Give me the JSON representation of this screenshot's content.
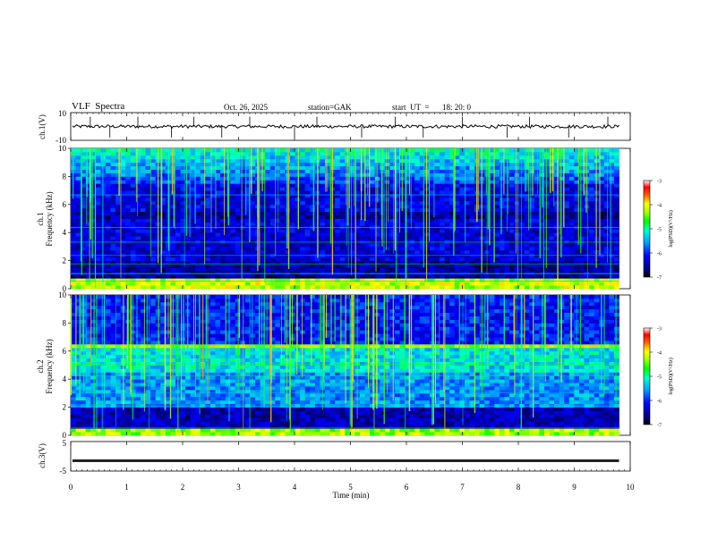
{
  "header": {
    "title": "VLF  Spectra",
    "date": "Oct. 26, 2025",
    "station": "station=GAK",
    "start_label": "start  UT  =",
    "start_time": "18: 20: 0"
  },
  "chart_data": [
    {
      "type": "line",
      "id": "ch1-waveform",
      "ylabel": "ch.1(V)",
      "ylim": [
        -10,
        10
      ],
      "ytick_labels": [
        "10",
        "-10"
      ],
      "baseline": 0,
      "spike_times_min": [
        0.35,
        0.7,
        1.2,
        1.8,
        2.2,
        2.7,
        3.2,
        4.0,
        4.4,
        5.2,
        5.8,
        6.3,
        7.0,
        7.8,
        8.2,
        8.9,
        9.6
      ]
    },
    {
      "type": "heatmap",
      "id": "ch1-spectrogram",
      "ylabel": "ch.1\nFrequency (kHz)",
      "ylabel_line1": "ch.1",
      "ylabel_line2": "Frequency  (kHz)",
      "ylim": [
        0,
        10
      ],
      "ytick_labels": [
        "0",
        "2",
        "4",
        "6",
        "8",
        "10"
      ],
      "colorbar": {
        "label": "log(PSD)(V²/Hz)",
        "range": [
          -7,
          -3
        ],
        "tick_labels": [
          "-3",
          "-4",
          "-5",
          "-6",
          "-7"
        ]
      }
    },
    {
      "type": "heatmap",
      "id": "ch2-spectrogram",
      "ylabel_line1": "ch.2",
      "ylabel_line2": "Frequency  (kHz)",
      "ylim": [
        0,
        10
      ],
      "ytick_labels": [
        "0",
        "2",
        "4",
        "6",
        "8",
        "10"
      ],
      "colorbar": {
        "label": "log(PSD)(V²/Hz)",
        "range": [
          -7,
          -3
        ],
        "tick_labels": [
          "-3",
          "-4",
          "-5",
          "-6",
          "-7"
        ]
      }
    },
    {
      "type": "line",
      "id": "ch3-waveform",
      "ylabel": "ch.3(V)",
      "ylim": [
        -5,
        5
      ],
      "ytick_labels": [
        "5",
        "-5"
      ],
      "baseline": -1.5
    }
  ],
  "xaxis": {
    "label": "Time  (min)",
    "xlim": [
      0,
      10
    ],
    "tick_labels": [
      "0",
      "1",
      "2",
      "3",
      "4",
      "5",
      "6",
      "7",
      "8",
      "9",
      "10"
    ],
    "data_end_min": 9.8
  },
  "colorbar_label": "log(PSD)(V²/Hz)"
}
